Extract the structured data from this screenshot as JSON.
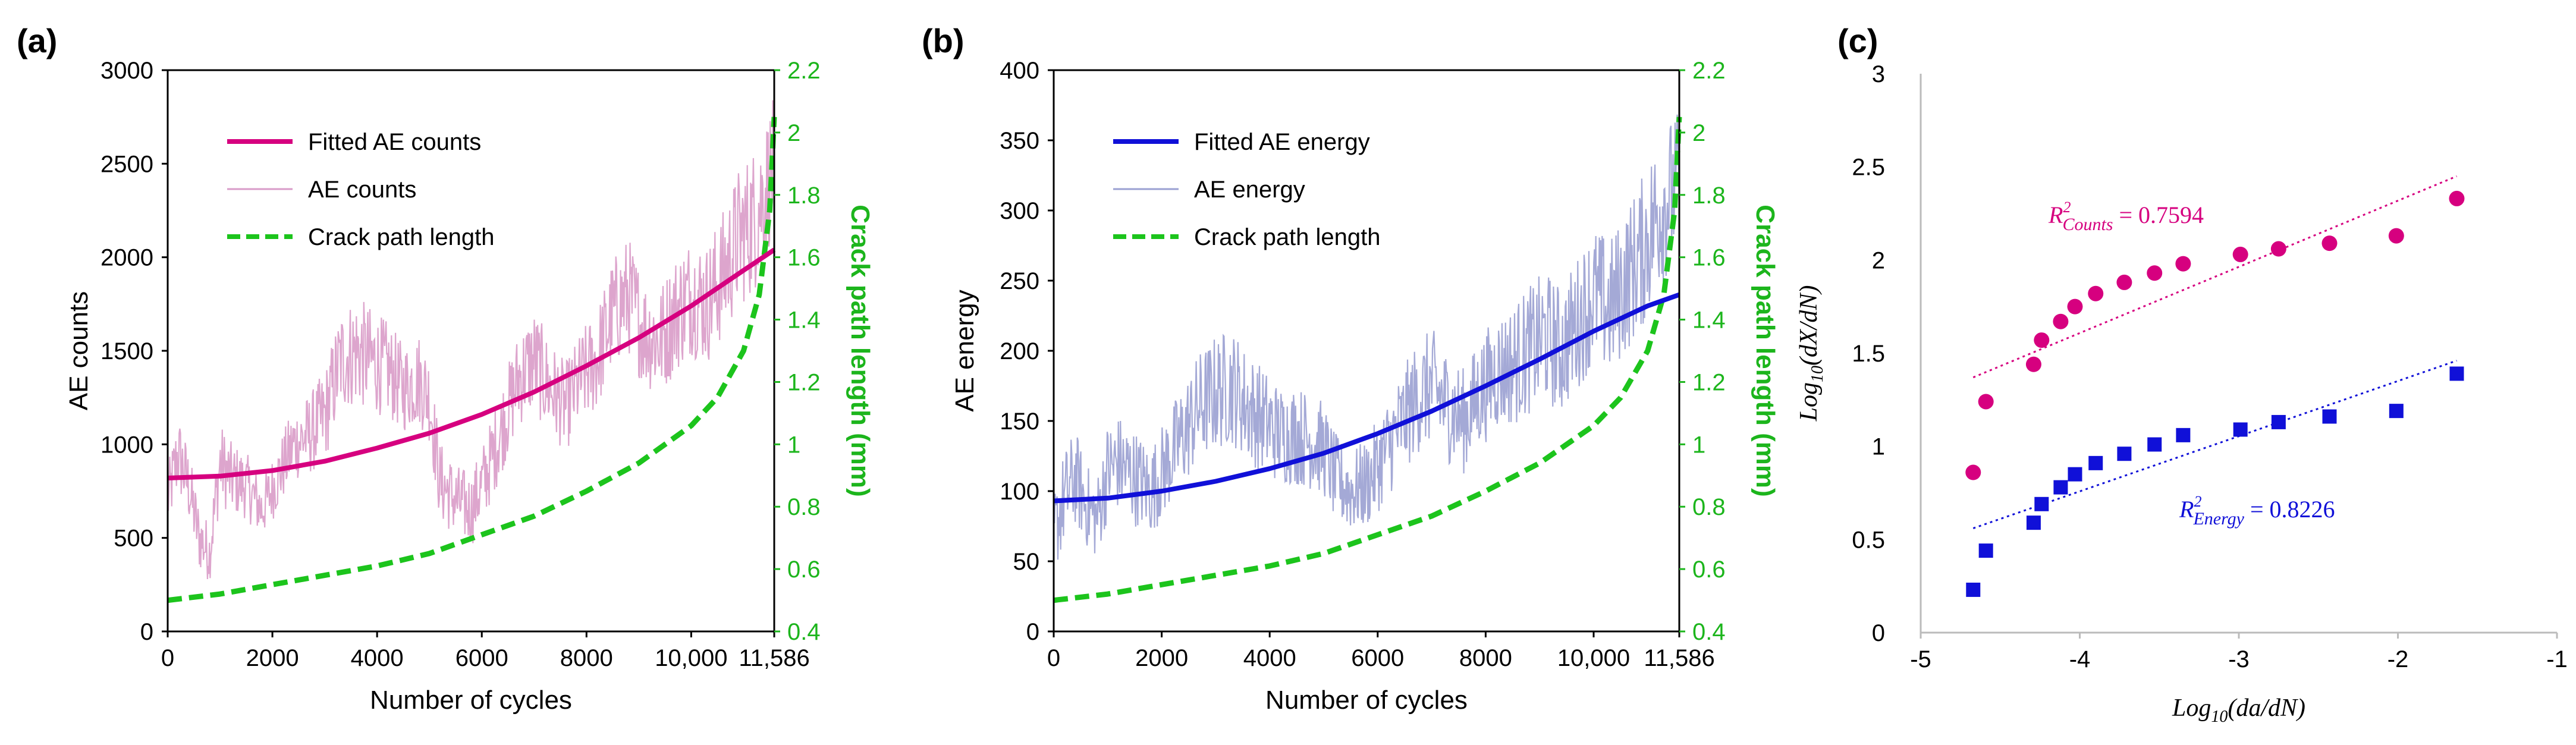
{
  "panel_labels": [
    "(a)",
    "(b)",
    "(c)"
  ],
  "colors": {
    "counts": "#d6007f",
    "counts_raw": "#d99bc8",
    "energy": "#1010d8",
    "energy_raw": "#9aa0d2",
    "crack": "#1cc41c",
    "right_axis": "#1cb51c"
  },
  "chart_data": [
    {
      "id": "a",
      "type": "line",
      "title": "",
      "xlabel": "Number of cycles",
      "ylabel": "AE counts",
      "y2label": "Crack path length (mm)",
      "xlim": [
        0,
        11586
      ],
      "ylim": [
        0,
        3000
      ],
      "y2lim": [
        0.4,
        2.2
      ],
      "xticks": [
        0,
        2000,
        4000,
        6000,
        8000,
        10000,
        11586
      ],
      "xticklabels": [
        "0",
        "2000",
        "4000",
        "6000",
        "8000",
        "10,000",
        "11,586"
      ],
      "yticks": [
        0,
        500,
        1000,
        1500,
        2000,
        2500,
        3000
      ],
      "yticklabels": [
        "0",
        "500",
        "1000",
        "1500",
        "2000",
        "2500",
        "3000"
      ],
      "y2ticks": [
        0.4,
        0.6,
        0.8,
        1.0,
        1.2,
        1.4,
        1.6,
        1.8,
        2.0,
        2.2
      ],
      "y2ticklabels": [
        "0.4",
        "0.6",
        "0.8",
        "1",
        "1.2",
        "1.4",
        "1.6",
        "1.8",
        "2",
        "2.2"
      ],
      "legend": [
        "Fitted AE counts",
        "AE counts",
        "Crack path length"
      ],
      "legend_position": "top-left",
      "fitted": {
        "name": "Fitted AE counts",
        "x": [
          0,
          1000,
          2000,
          3000,
          4000,
          5000,
          6000,
          7000,
          8000,
          9000,
          10000,
          11000,
          11586
        ],
        "y": [
          820,
          830,
          860,
          910,
          980,
          1060,
          1160,
          1280,
          1420,
          1570,
          1740,
          1930,
          2040
        ]
      },
      "raw": {
        "name": "AE counts",
        "x": [
          0,
          200,
          400,
          600,
          800,
          1000,
          1200,
          1500,
          1800,
          2100,
          2400,
          2700,
          3000,
          3300,
          3600,
          3900,
          4200,
          4500,
          4800,
          5000,
          5200,
          5500,
          5800,
          6100,
          6400,
          6700,
          7000,
          7300,
          7600,
          7900,
          8200,
          8500,
          8800,
          9100,
          9400,
          9700,
          10000,
          10300,
          10600,
          10900,
          11200,
          11400,
          11586
        ],
        "y": [
          700,
          950,
          780,
          500,
          420,
          900,
          820,
          780,
          650,
          820,
          1000,
          1050,
          1150,
          1450,
          1500,
          1450,
          1400,
          1300,
          1350,
          1250,
          800,
          700,
          650,
          850,
          1100,
          1350,
          1450,
          1300,
          1200,
          1350,
          1450,
          1700,
          1800,
          1600,
          1550,
          1700,
          1800,
          1750,
          1900,
          2100,
          2200,
          2350,
          2500
        ],
        "spread": [
          180,
          220,
          200,
          180,
          160,
          220,
          200,
          180,
          160,
          180,
          200,
          220,
          250,
          280,
          300,
          280,
          260,
          240,
          250,
          240,
          220,
          200,
          200,
          220,
          240,
          260,
          280,
          260,
          240,
          260,
          280,
          300,
          320,
          300,
          300,
          320,
          330,
          330,
          350,
          380,
          400,
          380,
          360
        ]
      },
      "crack": {
        "name": "Crack path length",
        "x": [
          0,
          1000,
          2000,
          3000,
          4000,
          5000,
          6000,
          7000,
          8000,
          9000,
          10000,
          10500,
          11000,
          11300,
          11500,
          11586
        ],
        "y": [
          0.5,
          0.52,
          0.55,
          0.58,
          0.61,
          0.65,
          0.71,
          0.77,
          0.85,
          0.94,
          1.06,
          1.15,
          1.3,
          1.48,
          1.75,
          2.05
        ]
      }
    },
    {
      "id": "b",
      "type": "line",
      "title": "",
      "xlabel": "Number of cycles",
      "ylabel": "AE energy",
      "y2label": "Crack path length (mm)",
      "xlim": [
        0,
        11586
      ],
      "ylim": [
        0,
        400
      ],
      "y2lim": [
        0.4,
        2.2
      ],
      "xticks": [
        0,
        2000,
        4000,
        6000,
        8000,
        10000,
        11586
      ],
      "xticklabels": [
        "0",
        "2000",
        "4000",
        "6000",
        "8000",
        "10,000",
        "11,586"
      ],
      "yticks": [
        0,
        50,
        100,
        150,
        200,
        250,
        300,
        350,
        400
      ],
      "yticklabels": [
        "0",
        "50",
        "100",
        "150",
        "200",
        "250",
        "300",
        "350",
        "400"
      ],
      "y2ticks": [
        0.4,
        0.6,
        0.8,
        1.0,
        1.2,
        1.4,
        1.6,
        1.8,
        2.0,
        2.2
      ],
      "y2ticklabels": [
        "0.4",
        "0.6",
        "0.8",
        "1",
        "1.2",
        "1.4",
        "1.6",
        "1.8",
        "2",
        "2.2"
      ],
      "legend": [
        "Fitted AE energy",
        "AE energy",
        "Crack path length"
      ],
      "legend_position": "top-left",
      "fitted": {
        "name": "Fitted AE energy",
        "x": [
          0,
          1000,
          2000,
          3000,
          4000,
          5000,
          6000,
          7000,
          8000,
          9000,
          10000,
          11000,
          11586
        ],
        "y": [
          93,
          95,
          100,
          107,
          116,
          127,
          141,
          157,
          175,
          194,
          214,
          232,
          240
        ]
      },
      "raw": {
        "name": "AE energy",
        "x": [
          0,
          200,
          400,
          600,
          800,
          1000,
          1200,
          1500,
          1800,
          2100,
          2400,
          2700,
          3000,
          3300,
          3600,
          3900,
          4200,
          4500,
          4800,
          5000,
          5200,
          5500,
          5800,
          6100,
          6400,
          6700,
          7000,
          7300,
          7600,
          7900,
          8200,
          8500,
          8800,
          9100,
          9400,
          9700,
          10000,
          10300,
          10600,
          10900,
          11200,
          11400,
          11586
        ],
        "y": [
          70,
          95,
          110,
          90,
          80,
          115,
          120,
          110,
          100,
          120,
          140,
          160,
          170,
          175,
          160,
          150,
          140,
          140,
          135,
          130,
          110,
          100,
          105,
          125,
          145,
          165,
          175,
          160,
          150,
          170,
          185,
          190,
          200,
          210,
          200,
          220,
          240,
          230,
          250,
          270,
          300,
          310,
          320
        ],
        "spread": [
          30,
          35,
          35,
          30,
          30,
          35,
          35,
          35,
          32,
          35,
          38,
          40,
          42,
          42,
          40,
          38,
          36,
          36,
          35,
          34,
          32,
          30,
          32,
          35,
          38,
          40,
          42,
          40,
          38,
          40,
          42,
          44,
          46,
          48,
          46,
          48,
          50,
          50,
          52,
          55,
          58,
          55,
          52
        ]
      },
      "crack": {
        "name": "Crack path length",
        "x": [
          0,
          1000,
          2000,
          3000,
          4000,
          5000,
          6000,
          7000,
          8000,
          9000,
          10000,
          10500,
          11000,
          11300,
          11500,
          11586
        ],
        "y": [
          0.5,
          0.52,
          0.55,
          0.58,
          0.61,
          0.65,
          0.71,
          0.77,
          0.85,
          0.94,
          1.06,
          1.15,
          1.3,
          1.48,
          1.75,
          2.05
        ]
      }
    },
    {
      "id": "c",
      "type": "scatter",
      "title": "",
      "xlabel_main": "Log",
      "xlabel_sub": "10",
      "xlabel_rest": "(da/dN)",
      "ylabel_main": "Log",
      "ylabel_sub": "10",
      "ylabel_rest": "(dX/dN)",
      "xlim": [
        -5,
        -1
      ],
      "ylim": [
        0,
        3
      ],
      "xticks": [
        -5,
        -4,
        -3,
        -2,
        -1
      ],
      "xticklabels": [
        "-5",
        "-4",
        "-3",
        "-2",
        "-1"
      ],
      "yticks": [
        0,
        0.5,
        1,
        1.5,
        2,
        2.5,
        3
      ],
      "yticklabels": [
        "0",
        "0.5",
        "1",
        "1.5",
        "2",
        "2.5",
        "3"
      ],
      "series": [
        {
          "name": "Counts",
          "marker": "circle",
          "x": [
            -4.67,
            -4.59,
            -4.29,
            -4.24,
            -4.12,
            -4.03,
            -3.9,
            -3.72,
            -3.53,
            -3.35,
            -2.99,
            -2.75,
            -2.43,
            -2.01,
            -1.63
          ],
          "y": [
            0.86,
            1.24,
            1.44,
            1.57,
            1.67,
            1.75,
            1.82,
            1.88,
            1.93,
            1.98,
            2.03,
            2.06,
            2.09,
            2.13,
            2.33
          ],
          "fit_x": [
            -4.67,
            -1.63
          ],
          "fit_y": [
            1.37,
            2.45
          ],
          "r2_label": "R",
          "r2_exp": "2",
          "r2_sub": "Counts",
          "r2_value": " = 0.7594"
        },
        {
          "name": "Energy",
          "marker": "square",
          "x": [
            -4.67,
            -4.59,
            -4.29,
            -4.24,
            -4.12,
            -4.03,
            -3.9,
            -3.72,
            -3.53,
            -3.35,
            -2.99,
            -2.75,
            -2.43,
            -2.01,
            -1.63
          ],
          "y": [
            0.23,
            0.44,
            0.59,
            0.69,
            0.78,
            0.85,
            0.91,
            0.96,
            1.01,
            1.06,
            1.09,
            1.13,
            1.16,
            1.19,
            1.39
          ],
          "fit_x": [
            -4.67,
            -1.63
          ],
          "fit_y": [
            0.56,
            1.46
          ],
          "r2_label": "R",
          "r2_exp": "2",
          "r2_sub": "Energy",
          "r2_value": " = 0.8226"
        }
      ]
    }
  ]
}
